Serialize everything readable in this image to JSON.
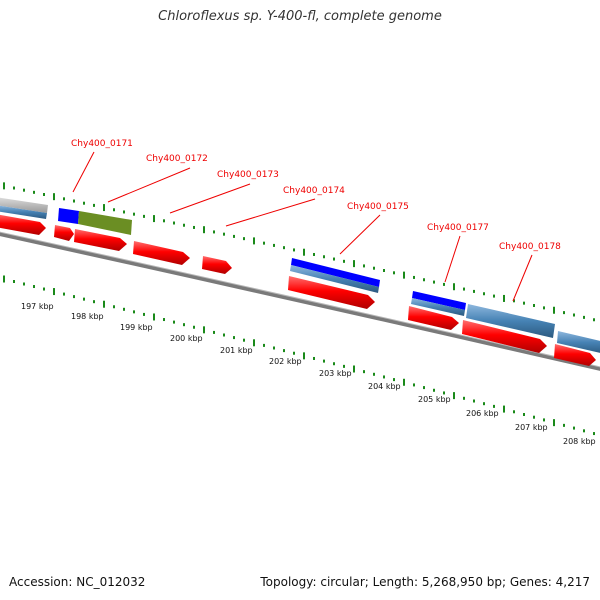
{
  "title": "Chloroflexus sp. Y-400-fl, complete genome",
  "accession_text": "Accession: NC_012032",
  "summary_text": "Topology: circular; Length: 5,268,950 bp; Genes: 4,217",
  "colors": {
    "cds": "#ff0000",
    "gene_blue": "#0000ff",
    "gene_steel": "#4682b4",
    "gene_olive": "#6b8e23",
    "backbone": "#808080",
    "tick": "#1a8a1a",
    "label": "#ee0000"
  },
  "kbp_labels": [
    "197 kbp",
    "198 kbp",
    "199 kbp",
    "200 kbp",
    "201 kbp",
    "202 kbp",
    "203 kbp",
    "204 kbp",
    "205 kbp",
    "206 kbp",
    "207 kbp",
    "208 kbp"
  ],
  "gene_labels": [
    "Chy400_0171",
    "Chy400_0172",
    "Chy400_0173",
    "Chy400_0174",
    "Chy400_0175",
    "Chy400_0177",
    "Chy400_0178"
  ]
}
